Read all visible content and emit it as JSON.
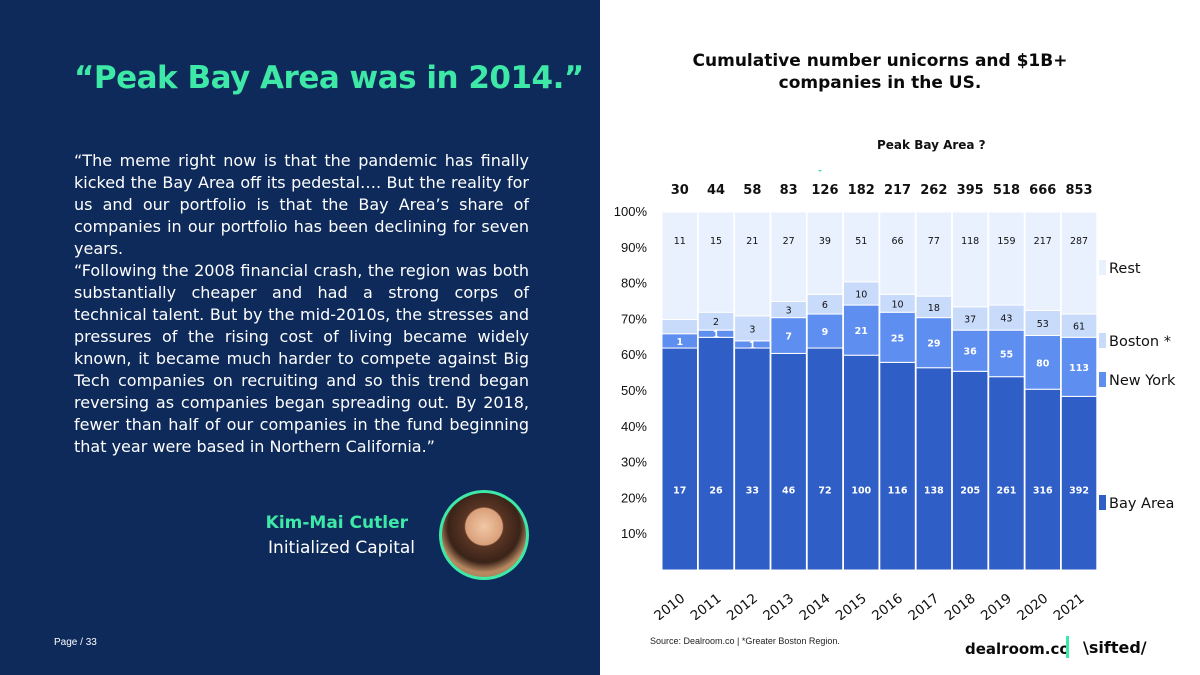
{
  "headline": "“Peak Bay Area was in 2014.”",
  "quote_1": "“The meme right now is that the pandemic has finally kicked the Bay Area off its pedestal…. But the reality for us and our portfolio is that the Bay Area’s share of companies in our portfolio has been declining for seven years.",
  "quote_2": "“Following the 2008 financial crash, the region was both substantially cheaper and had a strong corps of technical talent. But by the mid-2010s, the stresses and pressures of the rising cost of living became widely known, it became much harder to compete against Big Tech companies on recruiting and so this trend began reversing as companies began spreading out. By 2018, fewer than half of our companies in the fund beginning that year were based in Northern California.”",
  "author": {
    "name": "Kim-Mai Cutler",
    "org": "Initialized Capital"
  },
  "page_label": "Page / 33",
  "annotation": "Peak Bay Area ?",
  "source": "Source: Dealroom.co |  *Greater Boston Region.",
  "brands": {
    "dealroom": "dealroom.co",
    "sifted": "\\sifted/"
  },
  "colors": {
    "background_left": "#0d2a5b",
    "accent": "#3ee8a6",
    "bay": "#2f5ec6",
    "ny": "#5d8ef0",
    "boston": "#c9dbfb",
    "rest": "#e8f1fd"
  },
  "chart_data": {
    "type": "bar",
    "stacked": true,
    "normalized": true,
    "title": "Cumulative number unicorns and $1B+ companies in the US.",
    "categories": [
      "2010",
      "2011",
      "2012",
      "2013",
      "2014",
      "2015",
      "2016",
      "2017",
      "2018",
      "2019",
      "2020",
      "2021"
    ],
    "totals": [
      30,
      44,
      58,
      83,
      126,
      182,
      217,
      262,
      395,
      518,
      666,
      853
    ],
    "yticks": [
      "10%",
      "20%",
      "30%",
      "40%",
      "50%",
      "60%",
      "70%",
      "80%",
      "90%",
      "100%"
    ],
    "ylim": [
      0,
      100
    ],
    "legend_position": "right",
    "series": [
      {
        "name": "Bay Area",
        "color": "#2f5ec6",
        "values": [
          17,
          26,
          33,
          46,
          72,
          100,
          116,
          138,
          205,
          261,
          316,
          392
        ],
        "shares": [
          62,
          65,
          62,
          60.5,
          62,
          60,
          58,
          56.5,
          55.5,
          54,
          50.5,
          48.5
        ]
      },
      {
        "name": "New York",
        "color": "#5d8ef0",
        "values": [
          1,
          1,
          1,
          7,
          9,
          21,
          25,
          29,
          36,
          55,
          80,
          113
        ],
        "shares": [
          4,
          2,
          2,
          10,
          9.5,
          14,
          14,
          14,
          11.5,
          13,
          15,
          16.5
        ]
      },
      {
        "name": "Boston *",
        "color": "#c9dbfb",
        "values": [
          null,
          2,
          3,
          3,
          6,
          10,
          10,
          18,
          37,
          43,
          53,
          61
        ],
        "shares": [
          4,
          5,
          7,
          4.5,
          5.5,
          6.5,
          5,
          6,
          6.5,
          7,
          7,
          6.5
        ]
      },
      {
        "name": "Rest",
        "color": "#e8f1fd",
        "values": [
          11,
          15,
          21,
          27,
          39,
          51,
          66,
          77,
          118,
          159,
          217,
          287
        ],
        "shares": [
          30,
          28,
          29,
          25,
          23,
          19.5,
          23,
          23.5,
          26.5,
          26,
          27.5,
          28.5
        ]
      }
    ]
  }
}
